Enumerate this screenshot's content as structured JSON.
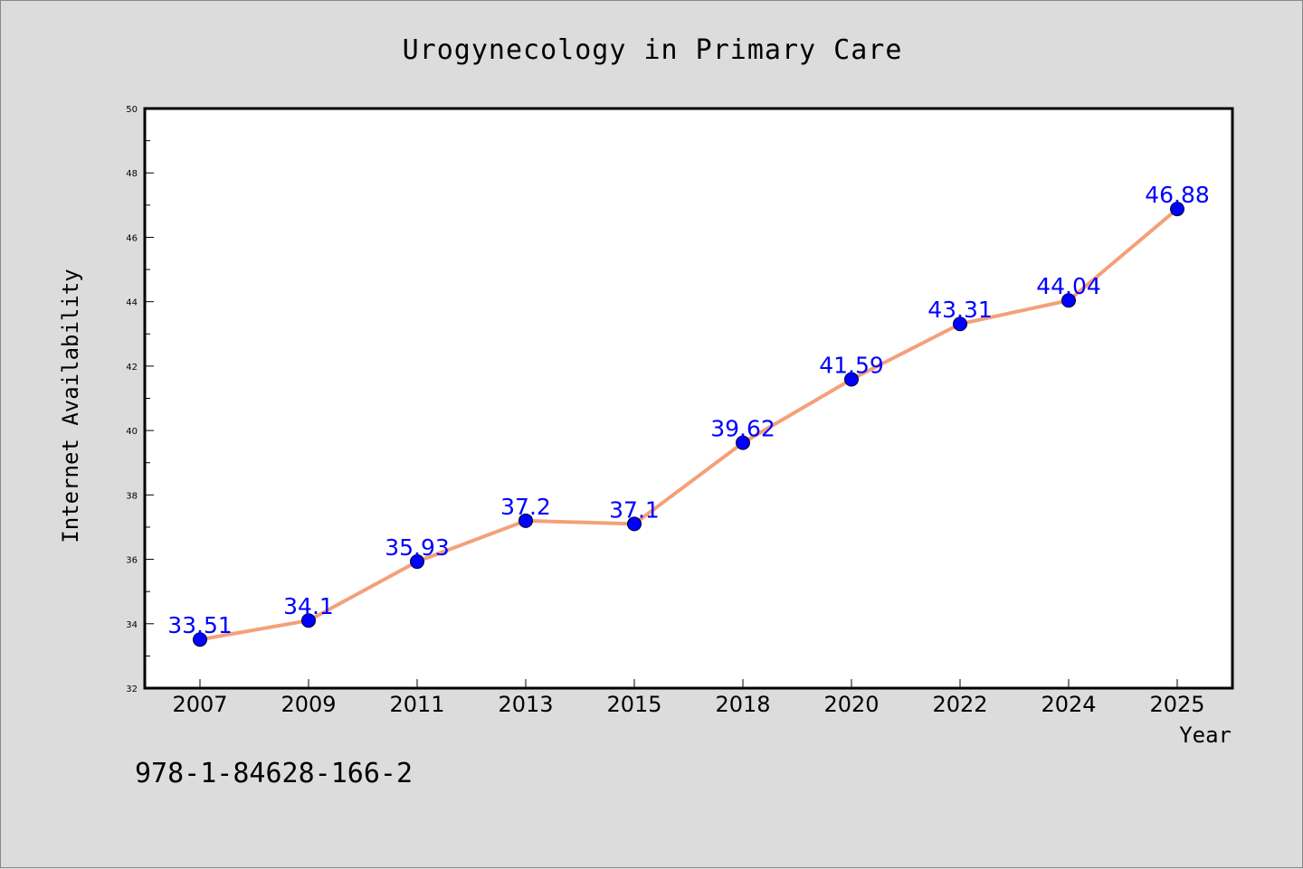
{
  "chart_data": {
    "type": "line",
    "title": "Urogynecology in Primary Care",
    "xlabel": "Year",
    "ylabel": "Internet Availability",
    "categories": [
      "2007",
      "2009",
      "2011",
      "2013",
      "2015",
      "2018",
      "2020",
      "2022",
      "2024",
      "2025"
    ],
    "values": [
      33.51,
      34.1,
      35.93,
      37.2,
      37.1,
      39.62,
      41.59,
      43.31,
      44.04,
      46.88
    ],
    "value_labels": [
      "33.51",
      "34.1",
      "35.93",
      "37.2",
      "37.1",
      "39.62",
      "41.59",
      "43.31",
      "44.04",
      "46.88"
    ],
    "ylim": [
      32,
      50
    ],
    "yticks": [
      "32",
      "34",
      "36",
      "38",
      "40",
      "42",
      "44",
      "46",
      "48",
      "50"
    ],
    "grid": false,
    "legend": "none",
    "colors": {
      "line": "#f4a07a",
      "marker": "#0000ff",
      "label": "#0000ff",
      "background": "#dcdcdc",
      "plot": "#ffffff"
    }
  },
  "footer": {
    "text": "978-1-84628-166-2"
  }
}
